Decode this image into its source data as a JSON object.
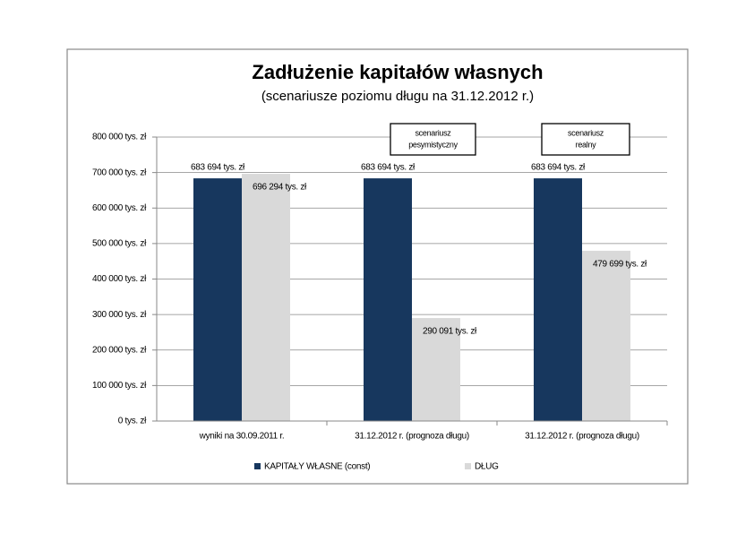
{
  "chart_data": {
    "type": "bar",
    "title": "Zadłużenie kapitałów własnych",
    "subtitle": "(scenariusze poziomu długu na 31.12.2012 r.)",
    "categories": [
      "wyniki na 30.09.2011 r.",
      "31.12.2012 r. (prognoza długu)",
      "31.12.2012 r. (prognoza długu)"
    ],
    "series": [
      {
        "name": "KAPITAŁY WŁASNE (const)",
        "color": "#17375e",
        "values": [
          683694,
          683694,
          683694
        ],
        "value_labels": [
          "683 694 tys. zł",
          "683 694 tys. zł",
          "683 694 tys. zł"
        ]
      },
      {
        "name": "DŁUG",
        "color": "#d9d9d9",
        "values": [
          696294,
          290091,
          479699
        ],
        "value_labels": [
          "696 294 tys. zł",
          "290 091 tys. zł",
          "479 699 tys. zł"
        ]
      }
    ],
    "ylim": [
      0,
      800000
    ],
    "yticks": [
      {
        "value": 0,
        "label": "0 tys. zł"
      },
      {
        "value": 100000,
        "label": "100 000 tys. zł"
      },
      {
        "value": 200000,
        "label": "200 000 tys. zł"
      },
      {
        "value": 300000,
        "label": "300 000 tys. zł"
      },
      {
        "value": 400000,
        "label": "400 000 tys. zł"
      },
      {
        "value": 500000,
        "label": "500 000 tys. zł"
      },
      {
        "value": 600000,
        "label": "600 000 tys. zł"
      },
      {
        "value": 700000,
        "label": "700 000 tys. zł"
      },
      {
        "value": 800000,
        "label": "800 000 tys. zł"
      }
    ],
    "grid": true,
    "legend": "bottom",
    "annotations": [
      {
        "lines": [
          "scenariusz",
          "pesymistyczny"
        ]
      },
      {
        "lines": [
          "scenariusz",
          "realny"
        ]
      }
    ]
  }
}
